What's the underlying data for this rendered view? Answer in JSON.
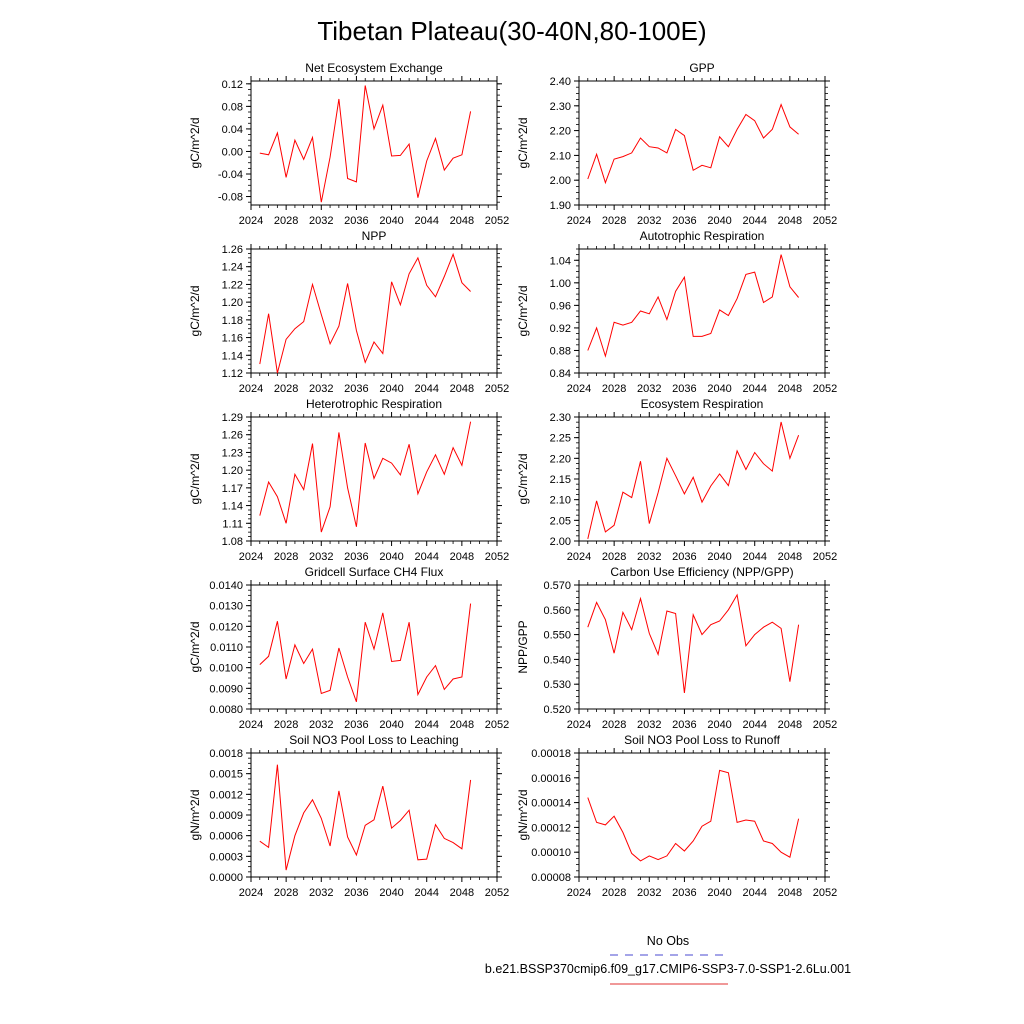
{
  "title": "Tibetan Plateau(30-40N,80-100E)",
  "legend": [
    {
      "label": "No Obs",
      "color": "#4a4ad0",
      "style": "dashed"
    },
    {
      "label": "b.e21.BSSP370cmip6.f09_g17.CMIP6-SSP3-7.0-SSP1-2.6Lu.001",
      "color": "#e03030",
      "style": "solid"
    }
  ],
  "line_color": "#ff0000",
  "chart_data": [
    {
      "type": "line",
      "title": "Net Ecosystem Exchange",
      "ylabel": "gC/m^2/d",
      "xlim": [
        2024,
        2052
      ],
      "xticks": [
        2024,
        2028,
        2032,
        2036,
        2040,
        2044,
        2048,
        2052
      ],
      "ylim": [
        -0.095,
        0.125
      ],
      "yticks": [
        "-0.08",
        "-0.04",
        "0.00",
        "0.04",
        "0.08",
        "0.12"
      ],
      "x": [
        2025,
        2026,
        2027,
        2028,
        2029,
        2030,
        2031,
        2032,
        2033,
        2034,
        2035,
        2036,
        2037,
        2038,
        2039,
        2040,
        2041,
        2042,
        2043,
        2044,
        2045,
        2046,
        2047,
        2048,
        2049
      ],
      "y": [
        -0.003,
        -0.006,
        0.033,
        -0.046,
        0.02,
        -0.014,
        0.025,
        -0.09,
        -0.01,
        0.093,
        -0.048,
        -0.054,
        0.117,
        0.04,
        0.082,
        -0.008,
        -0.007,
        0.013,
        -0.082,
        -0.017,
        0.023,
        -0.033,
        -0.012,
        -0.006,
        0.071
      ]
    },
    {
      "type": "line",
      "title": "GPP",
      "ylabel": "gC/m^2/d",
      "xlim": [
        2024,
        2052
      ],
      "xticks": [
        2024,
        2028,
        2032,
        2036,
        2040,
        2044,
        2048,
        2052
      ],
      "ylim": [
        1.9,
        2.4
      ],
      "yticks": [
        "1.90",
        "2.00",
        "2.10",
        "2.20",
        "2.30",
        "2.40"
      ],
      "x": [
        2025,
        2026,
        2027,
        2028,
        2029,
        2030,
        2031,
        2032,
        2033,
        2034,
        2035,
        2036,
        2037,
        2038,
        2039,
        2040,
        2041,
        2042,
        2043,
        2044,
        2045,
        2046,
        2047,
        2048,
        2049
      ],
      "y": [
        2.005,
        2.105,
        1.99,
        2.085,
        2.095,
        2.11,
        2.17,
        2.135,
        2.13,
        2.11,
        2.205,
        2.18,
        2.04,
        2.06,
        2.05,
        2.175,
        2.135,
        2.205,
        2.265,
        2.24,
        2.17,
        2.205,
        2.305,
        2.215,
        2.185
      ]
    },
    {
      "type": "line",
      "title": "NPP",
      "ylabel": "gC/m^2/d",
      "xlim": [
        2024,
        2052
      ],
      "xticks": [
        2024,
        2028,
        2032,
        2036,
        2040,
        2044,
        2048,
        2052
      ],
      "ylim": [
        1.12,
        1.26
      ],
      "yticks": [
        "1.12",
        "1.14",
        "1.16",
        "1.18",
        "1.20",
        "1.22",
        "1.24",
        "1.26"
      ],
      "x": [
        2025,
        2026,
        2027,
        2028,
        2029,
        2030,
        2031,
        2032,
        2033,
        2034,
        2035,
        2036,
        2037,
        2038,
        2039,
        2040,
        2041,
        2042,
        2043,
        2044,
        2045,
        2046,
        2047,
        2048,
        2049
      ],
      "y": [
        1.13,
        1.187,
        1.12,
        1.158,
        1.17,
        1.178,
        1.22,
        1.186,
        1.153,
        1.173,
        1.221,
        1.168,
        1.132,
        1.155,
        1.142,
        1.223,
        1.197,
        1.232,
        1.25,
        1.219,
        1.206,
        1.229,
        1.254,
        1.222,
        1.212
      ]
    },
    {
      "type": "line",
      "title": "Autotrophic Respiration",
      "ylabel": "gC/m^2/d",
      "xlim": [
        2024,
        2052
      ],
      "xticks": [
        2024,
        2028,
        2032,
        2036,
        2040,
        2044,
        2048,
        2052
      ],
      "ylim": [
        0.84,
        1.06
      ],
      "yticks": [
        "0.84",
        "0.88",
        "0.92",
        "0.96",
        "1.00",
        "1.04"
      ],
      "x": [
        2025,
        2026,
        2027,
        2028,
        2029,
        2030,
        2031,
        2032,
        2033,
        2034,
        2035,
        2036,
        2037,
        2038,
        2039,
        2040,
        2041,
        2042,
        2043,
        2044,
        2045,
        2046,
        2047,
        2048,
        2049
      ],
      "y": [
        0.88,
        0.92,
        0.87,
        0.93,
        0.925,
        0.93,
        0.95,
        0.945,
        0.975,
        0.935,
        0.985,
        1.01,
        0.905,
        0.905,
        0.91,
        0.952,
        0.942,
        0.972,
        1.015,
        1.019,
        0.965,
        0.975,
        1.05,
        0.993,
        0.974
      ]
    },
    {
      "type": "line",
      "title": "Heterotrophic Respiration",
      "ylabel": "gC/m^2/d",
      "xlim": [
        2024,
        2052
      ],
      "xticks": [
        2024,
        2028,
        2032,
        2036,
        2040,
        2044,
        2048,
        2052
      ],
      "ylim": [
        1.08,
        1.29
      ],
      "yticks": [
        "1.08",
        "1.11",
        "1.14",
        "1.17",
        "1.20",
        "1.23",
        "1.26",
        "1.29"
      ],
      "x": [
        2025,
        2026,
        2027,
        2028,
        2029,
        2030,
        2031,
        2032,
        2033,
        2034,
        2035,
        2036,
        2037,
        2038,
        2039,
        2040,
        2041,
        2042,
        2043,
        2044,
        2045,
        2046,
        2047,
        2048,
        2049
      ],
      "y": [
        1.123,
        1.18,
        1.155,
        1.11,
        1.193,
        1.167,
        1.245,
        1.095,
        1.138,
        1.264,
        1.17,
        1.104,
        1.246,
        1.186,
        1.22,
        1.212,
        1.192,
        1.244,
        1.16,
        1.197,
        1.226,
        1.193,
        1.238,
        1.208,
        1.282
      ]
    },
    {
      "type": "line",
      "title": "Ecosystem Respiration",
      "ylabel": "gC/m^2/d",
      "xlim": [
        2024,
        2052
      ],
      "xticks": [
        2024,
        2028,
        2032,
        2036,
        2040,
        2044,
        2048,
        2052
      ],
      "ylim": [
        2.0,
        2.3
      ],
      "yticks": [
        "2.00",
        "2.05",
        "2.10",
        "2.15",
        "2.20",
        "2.25",
        "2.30"
      ],
      "x": [
        2025,
        2026,
        2027,
        2028,
        2029,
        2030,
        2031,
        2032,
        2033,
        2034,
        2035,
        2036,
        2037,
        2038,
        2039,
        2040,
        2041,
        2042,
        2043,
        2044,
        2045,
        2046,
        2047,
        2048,
        2049
      ],
      "y": [
        2.005,
        2.097,
        2.022,
        2.038,
        2.118,
        2.105,
        2.193,
        2.042,
        2.117,
        2.2,
        2.158,
        2.114,
        2.154,
        2.094,
        2.133,
        2.162,
        2.134,
        2.218,
        2.173,
        2.214,
        2.187,
        2.169,
        2.288,
        2.2,
        2.256
      ]
    },
    {
      "type": "line",
      "title": "Gridcell Surface CH4 Flux",
      "ylabel": "gC/m^2/d",
      "xlim": [
        2024,
        2052
      ],
      "xticks": [
        2024,
        2028,
        2032,
        2036,
        2040,
        2044,
        2048,
        2052
      ],
      "ylim": [
        0.008,
        0.014
      ],
      "yticks": [
        "0.0080",
        "0.0090",
        "0.0100",
        "0.0110",
        "0.0120",
        "0.0130",
        "0.0140"
      ],
      "x": [
        2025,
        2026,
        2027,
        2028,
        2029,
        2030,
        2031,
        2032,
        2033,
        2034,
        2035,
        2036,
        2037,
        2038,
        2039,
        2040,
        2041,
        2042,
        2043,
        2044,
        2045,
        2046,
        2047,
        2048,
        2049
      ],
      "y": [
        0.01015,
        0.01055,
        0.01225,
        0.00945,
        0.0111,
        0.0102,
        0.0109,
        0.00875,
        0.0089,
        0.01095,
        0.00955,
        0.00835,
        0.0122,
        0.0109,
        0.01265,
        0.0103,
        0.01035,
        0.0122,
        0.0087,
        0.00955,
        0.0101,
        0.00895,
        0.00945,
        0.00955,
        0.0131
      ]
    },
    {
      "type": "line",
      "title": "Carbon Use Efficiency (NPP/GPP)",
      "ylabel": "NPP/GPP",
      "xlim": [
        2024,
        2052
      ],
      "xticks": [
        2024,
        2028,
        2032,
        2036,
        2040,
        2044,
        2048,
        2052
      ],
      "ylim": [
        0.52,
        0.57
      ],
      "yticks": [
        "0.520",
        "0.530",
        "0.540",
        "0.550",
        "0.560",
        "0.570"
      ],
      "x": [
        2025,
        2026,
        2027,
        2028,
        2029,
        2030,
        2031,
        2032,
        2033,
        2034,
        2035,
        2036,
        2037,
        2038,
        2039,
        2040,
        2041,
        2042,
        2043,
        2044,
        2045,
        2046,
        2047,
        2048,
        2049
      ],
      "y": [
        0.553,
        0.563,
        0.556,
        0.5425,
        0.559,
        0.552,
        0.5645,
        0.5505,
        0.542,
        0.5595,
        0.5585,
        0.5265,
        0.558,
        0.55,
        0.554,
        0.5555,
        0.56,
        0.566,
        0.5455,
        0.55,
        0.553,
        0.555,
        0.5525,
        0.531,
        0.554
      ]
    },
    {
      "type": "line",
      "title": "Soil NO3 Pool Loss to Leaching",
      "ylabel": "gN/m^2/d",
      "xlim": [
        2024,
        2052
      ],
      "xticks": [
        2024,
        2028,
        2032,
        2036,
        2040,
        2044,
        2048,
        2052
      ],
      "ylim": [
        0.0,
        0.0018
      ],
      "yticks": [
        "0.0000",
        "0.0003",
        "0.0006",
        "0.0009",
        "0.0012",
        "0.0015",
        "0.0018"
      ],
      "x": [
        2025,
        2026,
        2027,
        2028,
        2029,
        2030,
        2031,
        2032,
        2033,
        2034,
        2035,
        2036,
        2037,
        2038,
        2039,
        2040,
        2041,
        2042,
        2043,
        2044,
        2045,
        2046,
        2047,
        2048,
        2049
      ],
      "y": [
        0.00052,
        0.00043,
        0.00163,
        0.0001,
        0.0006,
        0.00093,
        0.00112,
        0.00085,
        0.00045,
        0.00125,
        0.00058,
        0.00032,
        0.00075,
        0.00083,
        0.00132,
        0.00071,
        0.00082,
        0.00097,
        0.00025,
        0.00026,
        0.00076,
        0.00056,
        0.0005,
        0.00041,
        0.00141
      ]
    },
    {
      "type": "line",
      "title": "Soil NO3 Pool Loss to Runoff",
      "ylabel": "gN/m^2/d",
      "xlim": [
        2024,
        2052
      ],
      "xticks": [
        2024,
        2028,
        2032,
        2036,
        2040,
        2044,
        2048,
        2052
      ],
      "ylim": [
        8e-05,
        0.00018
      ],
      "yticks": [
        "0.00008",
        "0.00010",
        "0.00012",
        "0.00014",
        "0.00016",
        "0.00018"
      ],
      "x": [
        2025,
        2026,
        2027,
        2028,
        2029,
        2030,
        2031,
        2032,
        2033,
        2034,
        2035,
        2036,
        2037,
        2038,
        2039,
        2040,
        2041,
        2042,
        2043,
        2044,
        2045,
        2046,
        2047,
        2048,
        2049
      ],
      "y": [
        0.000144,
        0.000124,
        0.000122,
        0.000129,
        0.000116,
        9.9e-05,
        9.3e-05,
        9.7e-05,
        9.4e-05,
        9.7e-05,
        0.000107,
        0.000101,
        0.000109,
        0.000121,
        0.000125,
        0.000166,
        0.000164,
        0.000124,
        0.000126,
        0.000125,
        0.000109,
        0.000107,
        0.0001,
        9.6e-05,
        0.000127
      ]
    }
  ]
}
